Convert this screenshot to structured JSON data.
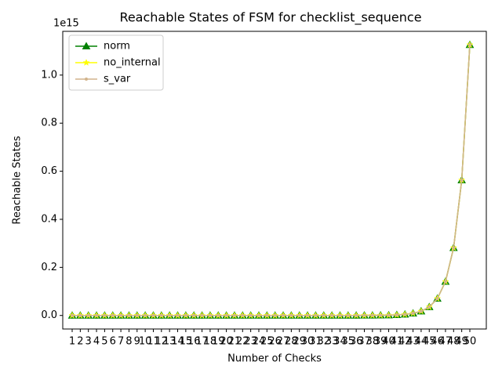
{
  "chart_data": {
    "type": "line",
    "title": "Reachable States of FSM for checklist_sequence",
    "xlabel": "Number of Checks",
    "ylabel": "Reachable States",
    "y_offset_label": "1e15",
    "x": [
      1,
      2,
      3,
      4,
      5,
      6,
      7,
      8,
      9,
      10,
      11,
      12,
      13,
      14,
      15,
      16,
      17,
      18,
      19,
      20,
      21,
      22,
      23,
      24,
      25,
      26,
      27,
      28,
      29,
      30,
      31,
      32,
      33,
      34,
      35,
      36,
      37,
      38,
      39,
      40,
      41,
      42,
      43,
      44,
      45,
      46,
      47,
      48,
      49,
      50
    ],
    "series": [
      {
        "name": "norm",
        "color": "#008000",
        "marker": "triangle",
        "values": [
          2,
          4,
          8,
          16,
          32,
          64,
          128,
          256,
          512,
          1024,
          2048,
          4096,
          8192,
          16384,
          32768,
          65536,
          131072,
          262144,
          524288,
          1048576,
          2097152,
          4194304,
          8388608,
          16777216,
          33554432,
          67108864,
          134217728,
          268435456,
          536870912,
          1073741824,
          2147483648,
          4294967296,
          8589934592,
          17179869184,
          34359738368,
          68719476736,
          137438953472,
          274877906944,
          549755813888,
          1099511627776,
          2199023255552,
          4398046511104,
          8796093022208,
          17592186044416,
          35184372088832,
          70368744177664,
          140737488355328,
          281474976710656,
          562949953421312,
          1125899906842624
        ]
      },
      {
        "name": "no_internal",
        "color": "#ffff00",
        "marker": "star",
        "values": [
          2,
          4,
          8,
          16,
          32,
          64,
          128,
          256,
          512,
          1024,
          2048,
          4096,
          8192,
          16384,
          32768,
          65536,
          131072,
          262144,
          524288,
          1048576,
          2097152,
          4194304,
          8388608,
          16777216,
          33554432,
          67108864,
          134217728,
          268435456,
          536870912,
          1073741824,
          2147483648,
          4294967296,
          8589934592,
          17179869184,
          34359738368,
          68719476736,
          137438953472,
          274877906944,
          549755813888,
          1099511627776,
          2199023255552,
          4398046511104,
          8796093022208,
          17592186044416,
          35184372088832,
          70368744177664,
          140737488355328,
          281474976710656,
          562949953421312,
          1125899906842624
        ]
      },
      {
        "name": "s_var",
        "color": "#d2b48c",
        "marker": "circle",
        "values": [
          2,
          4,
          8,
          16,
          32,
          64,
          128,
          256,
          512,
          1024,
          2048,
          4096,
          8192,
          16384,
          32768,
          65536,
          131072,
          262144,
          524288,
          1048576,
          2097152,
          4194304,
          8388608,
          16777216,
          33554432,
          67108864,
          134217728,
          268435456,
          536870912,
          1073741824,
          2147483648,
          4294967296,
          8589934592,
          17179869184,
          34359738368,
          68719476736,
          137438953472,
          274877906944,
          549755813888,
          1099511627776,
          2199023255552,
          4398046511104,
          8796093022208,
          17592186044416,
          35184372088832,
          70368744177664,
          140737488355328,
          281474976710656,
          562949953421312,
          1125899906842624
        ]
      }
    ],
    "xlim": [
      -0.16,
      52.03
    ],
    "xticks": [
      1,
      2,
      3,
      4,
      5,
      6,
      7,
      8,
      9,
      10,
      11,
      12,
      13,
      14,
      15,
      16,
      17,
      18,
      19,
      20,
      21,
      22,
      23,
      24,
      25,
      26,
      27,
      28,
      29,
      30,
      31,
      32,
      33,
      34,
      35,
      36,
      37,
      38,
      39,
      40,
      41,
      42,
      43,
      44,
      45,
      46,
      47,
      48,
      49,
      50
    ],
    "ylim": [
      -56300000000000,
      1182000000000000
    ],
    "yticks": [
      {
        "value": 0,
        "label": "0.0"
      },
      {
        "value": 200000000000000,
        "label": "0.2"
      },
      {
        "value": 400000000000000,
        "label": "0.4"
      },
      {
        "value": 600000000000000,
        "label": "0.6"
      },
      {
        "value": 800000000000000,
        "label": "0.8"
      },
      {
        "value": 1000000000000000,
        "label": "1.0"
      }
    ],
    "grid": false,
    "legend": "upper left"
  }
}
